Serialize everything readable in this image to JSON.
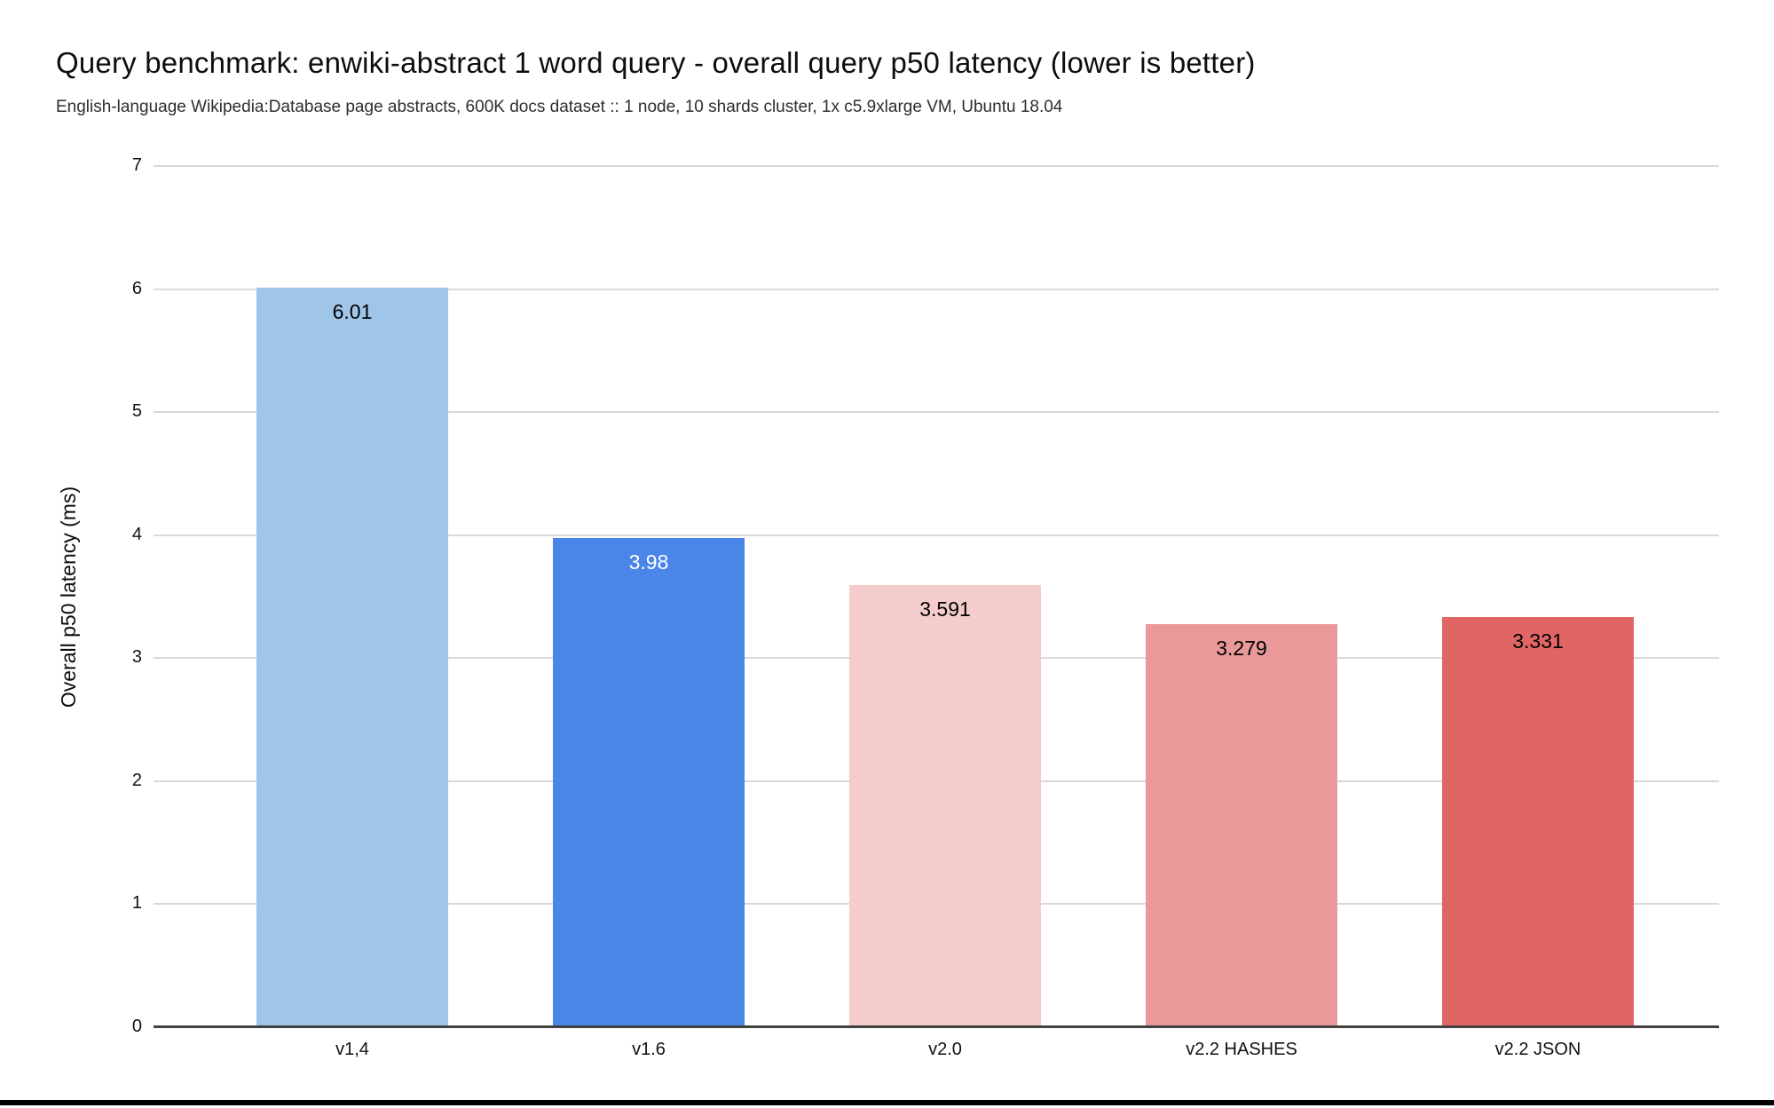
{
  "chart_data": {
    "type": "bar",
    "title": "Query benchmark: enwiki-abstract 1 word query - overall query p50 latency (lower is better)",
    "subtitle": "English-language Wikipedia:Database page abstracts, 600K docs dataset :: 1 node, 10 shards cluster, 1x c5.9xlarge VM, Ubuntu 18.04",
    "categories": [
      "v1,4",
      "v1.6",
      "v2.0",
      "v2.2 HASHES",
      "v2.2 JSON"
    ],
    "values": [
      6.01,
      3.98,
      3.591,
      3.279,
      3.331
    ],
    "value_labels": [
      "6.01",
      "3.98",
      "3.591",
      "3.279",
      "3.331"
    ],
    "bar_colors": [
      "#9fc5e8",
      "#4a86e8",
      "#f4cccc",
      "#ea9999",
      "#e06666"
    ],
    "value_label_colors": [
      "#000000",
      "#ffffff",
      "#000000",
      "#000000",
      "#000000"
    ],
    "xlabel": "",
    "ylabel": "Overall p50 latency (ms)",
    "ylim": [
      0,
      7
    ],
    "yticks": [
      0,
      1,
      2,
      3,
      4,
      5,
      6,
      7
    ],
    "grid": "horizontal",
    "legend": "none"
  },
  "colors": {
    "gridline": "#d9d9d9",
    "axis_line": "#424242",
    "background": "#ffffff",
    "bottom_strip": "#000000"
  }
}
